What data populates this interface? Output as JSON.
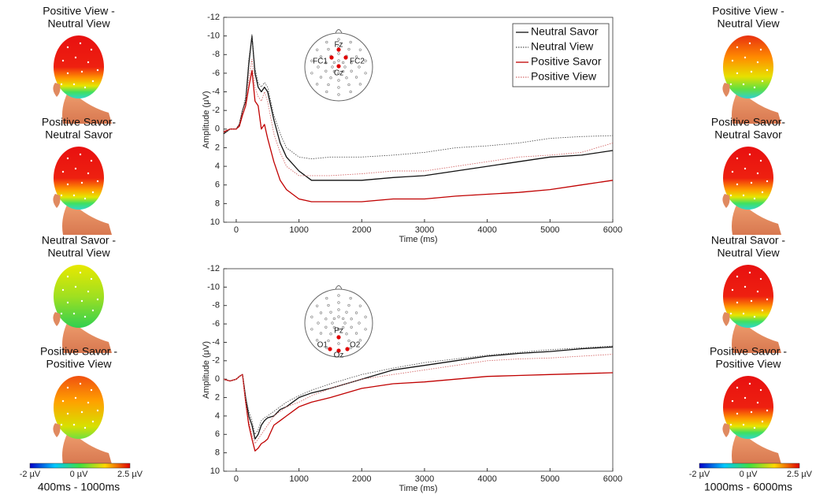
{
  "chart_data": [
    {
      "type": "line",
      "y_label": "Amplitude (μV)",
      "x_label": "Time (ms)",
      "x": [
        -200,
        -100,
        0,
        50,
        100,
        150,
        200,
        250,
        300,
        350,
        400,
        450,
        500,
        600,
        700,
        800,
        1000,
        1200,
        1500,
        2000,
        2500,
        3000,
        3500,
        4000,
        4500,
        5000,
        5500,
        6000
      ],
      "xlim": [
        -200,
        6000
      ],
      "xticks": [
        0,
        1000,
        2000,
        3000,
        4000,
        5000,
        6000
      ],
      "ylim": [
        10,
        -12
      ],
      "yticks": [
        -12,
        -10,
        -8,
        -6,
        -4,
        -2,
        0,
        2,
        4,
        6,
        8,
        10
      ],
      "legend": "upper right",
      "electrode_labels": [
        "Fz",
        "FC1",
        "FC2",
        "Cz"
      ],
      "series": [
        {
          "name": "Neutral Savor",
          "color": "#111111",
          "dash": "solid",
          "values": [
            0.5,
            0,
            0,
            -0.5,
            -2,
            -3,
            -7,
            -10,
            -6,
            -4.5,
            -4,
            -4.5,
            -4,
            -1,
            1.5,
            3,
            4.5,
            5.5,
            5.5,
            5.5,
            5.2,
            5,
            4.5,
            4,
            3.5,
            3,
            2.8,
            2.3
          ]
        },
        {
          "name": "Neutral View",
          "color": "#555555",
          "dash": "dotted",
          "values": [
            0.3,
            0,
            0,
            -0.5,
            -2,
            -3.5,
            -7.5,
            -10.2,
            -6.5,
            -5,
            -4.5,
            -5,
            -4.5,
            -1.5,
            0.5,
            2,
            3,
            3.2,
            3,
            3,
            2.8,
            2.5,
            2,
            1.8,
            1.5,
            1,
            0.8,
            0.7
          ]
        },
        {
          "name": "Positive Savor",
          "color": "#c00000",
          "dash": "solid",
          "values": [
            0.3,
            0,
            0,
            -0.3,
            -1.5,
            -2.5,
            -4.5,
            -6.3,
            -3,
            -2.5,
            0,
            -0.5,
            1,
            3.5,
            5.5,
            6.5,
            7.5,
            7.8,
            7.8,
            7.8,
            7.5,
            7.5,
            7.2,
            7,
            6.8,
            6.5,
            6,
            5.5
          ]
        },
        {
          "name": "Positive View",
          "color": "#d46a6a",
          "dash": "dotted",
          "values": [
            0.4,
            0,
            0,
            -0.5,
            -2,
            -3,
            -5.5,
            -7.5,
            -4.5,
            -3.5,
            -3,
            -4,
            -3,
            0.5,
            2.5,
            4,
            5,
            5,
            5,
            4.8,
            4.5,
            4.5,
            4,
            3.5,
            3,
            2.8,
            2.5,
            1.5
          ]
        }
      ]
    },
    {
      "type": "line",
      "y_label": "Amplitude (μV)",
      "x_label": "Time (ms)",
      "x": [
        -200,
        -100,
        0,
        50,
        100,
        150,
        200,
        250,
        300,
        350,
        400,
        450,
        500,
        600,
        700,
        800,
        1000,
        1200,
        1500,
        2000,
        2500,
        3000,
        3500,
        4000,
        4500,
        5000,
        5500,
        6000
      ],
      "xlim": [
        -200,
        6000
      ],
      "xticks": [
        0,
        1000,
        2000,
        3000,
        4000,
        5000,
        6000
      ],
      "ylim": [
        10,
        -12
      ],
      "yticks": [
        -12,
        -10,
        -8,
        -6,
        -4,
        -2,
        0,
        2,
        4,
        6,
        8,
        10
      ],
      "electrode_labels": [
        "Pz",
        "O1",
        "O2",
        "Oz"
      ],
      "series": [
        {
          "color": "#111111",
          "dash": "solid",
          "values": [
            0,
            0.2,
            0,
            -0.3,
            -0.5,
            2,
            4,
            5,
            6.5,
            6,
            5,
            4.5,
            4.2,
            4,
            3.3,
            3,
            2,
            1.5,
            1,
            0,
            -1,
            -1.5,
            -2,
            -2.5,
            -2.8,
            -3,
            -3.3,
            -3.5
          ]
        },
        {
          "color": "#555555",
          "dash": "dotted",
          "values": [
            0,
            0.2,
            0,
            -0.3,
            -0.5,
            2,
            3.5,
            4.5,
            6,
            5.5,
            4.5,
            4.2,
            4,
            3.5,
            3,
            2.5,
            1.8,
            1.2,
            0.5,
            -0.5,
            -1.2,
            -1.8,
            -2.2,
            -2.6,
            -2.9,
            -3.2,
            -3.4,
            -3.6
          ]
        },
        {
          "color": "#c00000",
          "dash": "solid",
          "values": [
            0,
            0.2,
            0,
            -0.3,
            -0.5,
            2.5,
            5,
            6.5,
            7.8,
            7.5,
            7,
            6.8,
            6.5,
            5,
            4.5,
            4,
            3,
            2.5,
            2,
            1,
            0.5,
            0.3,
            0,
            -0.3,
            -0.4,
            -0.5,
            -0.6,
            -0.7
          ]
        },
        {
          "color": "#d46a6a",
          "dash": "dotted",
          "values": [
            0,
            0.2,
            0,
            -0.3,
            -0.5,
            2.5,
            4.5,
            6,
            7,
            6.5,
            6,
            5.5,
            5,
            4,
            3.5,
            3,
            2.5,
            1.8,
            1,
            0,
            -0.5,
            -1,
            -1.5,
            -2,
            -2.2,
            -2.3,
            -2.5,
            -2.7
          ]
        }
      ]
    }
  ],
  "topomaps": {
    "left": {
      "panels": [
        {
          "title": [
            "Positive View -",
            "Neutral View"
          ]
        },
        {
          "title": [
            "Positive Savor-",
            "Neutral Savor"
          ]
        },
        {
          "title": [
            "Neutral Savor -",
            "Neutral View"
          ]
        },
        {
          "title": [
            "Positive Savor -",
            "Positive View"
          ]
        }
      ],
      "colorbar_labels": [
        "-2 µV",
        "0 µV",
        "2.5 µV"
      ],
      "window": "400ms - 1000ms"
    },
    "right": {
      "panels": [
        {
          "title": [
            "Positive View -",
            "Neutral View"
          ]
        },
        {
          "title": [
            "Positive Savor-",
            "Neutral Savor"
          ]
        },
        {
          "title": [
            "Neutral Savor -",
            "Neutral View"
          ]
        },
        {
          "title": [
            "Positive Savor -",
            "Positive View"
          ]
        }
      ],
      "colorbar_labels": [
        "-2 µV",
        "0 µV",
        "2.5 µV"
      ],
      "window": "1000ms - 6000ms"
    }
  }
}
